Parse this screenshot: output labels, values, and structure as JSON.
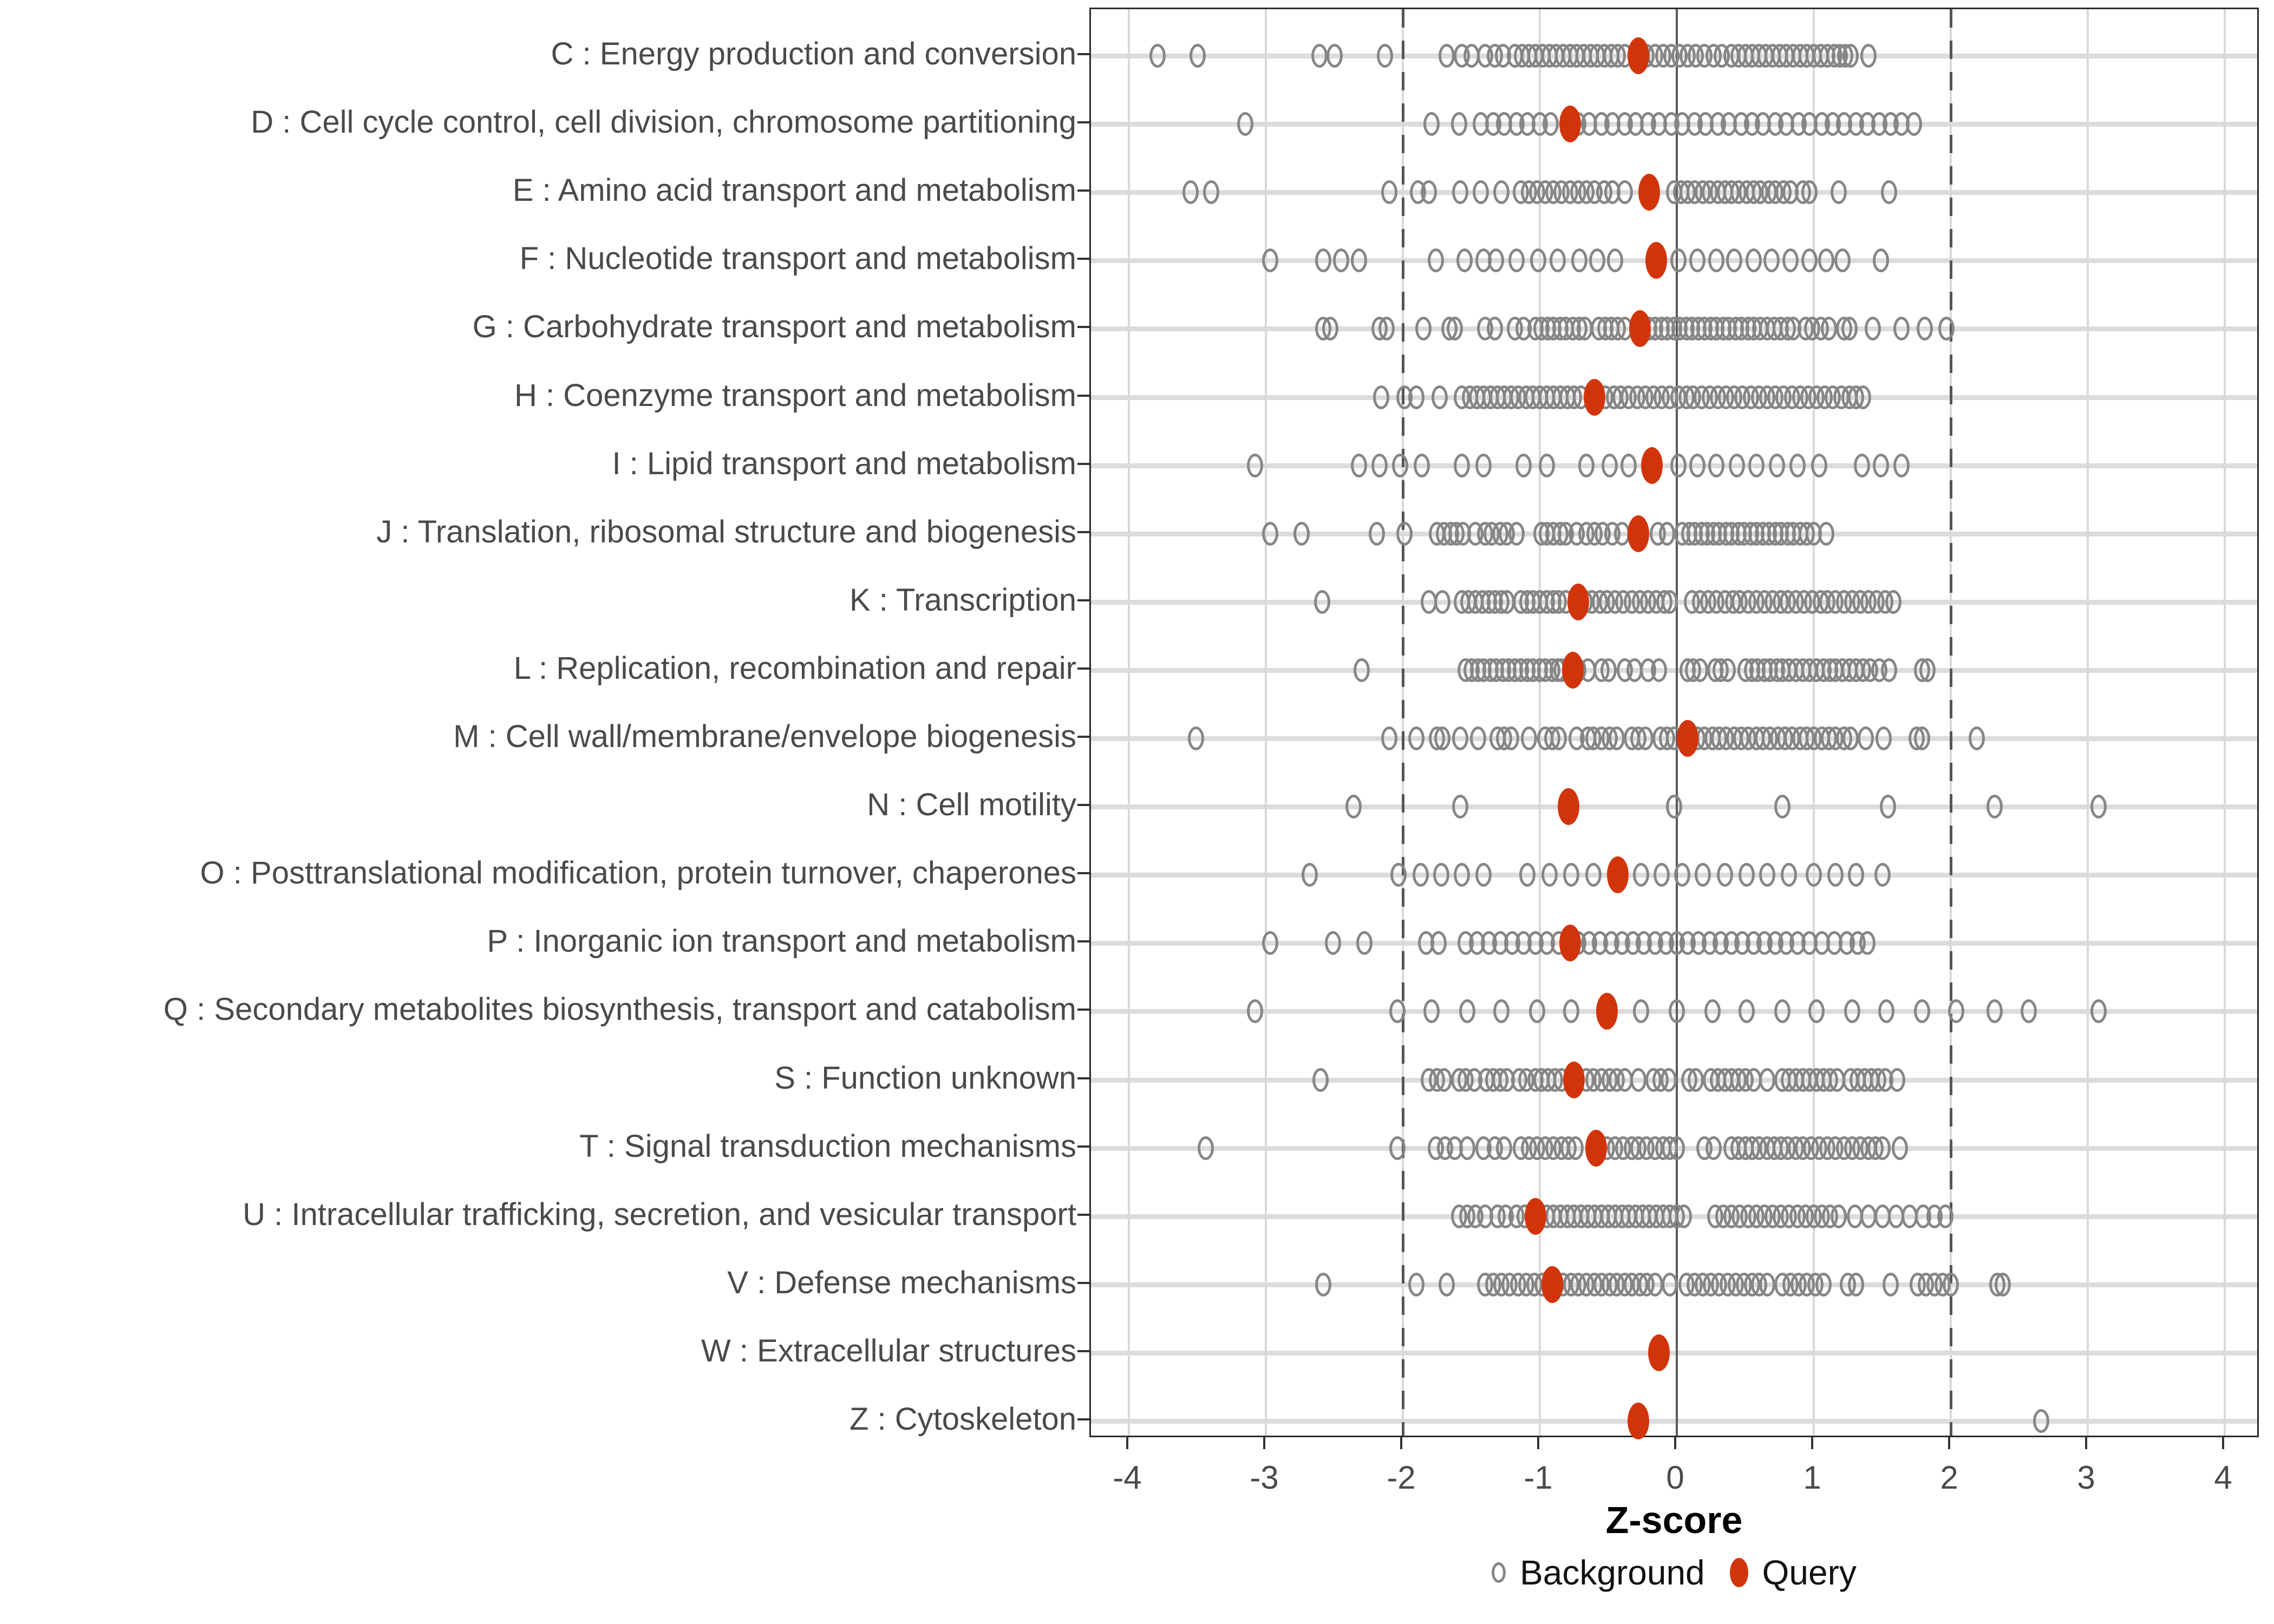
{
  "x_axis": {
    "title": "Z-score",
    "ticks": [
      "-4",
      "-3",
      "-2",
      "-1",
      "0",
      "1",
      "2",
      "3",
      "4"
    ],
    "tick_values": [
      -4,
      -3,
      -2,
      -1,
      0,
      1,
      2,
      3,
      4
    ]
  },
  "legend": {
    "background_label": "Background",
    "query_label": "Query"
  },
  "colors": {
    "query": "#d2340a",
    "background_stroke": "#868686",
    "grid": "#d9d9d9",
    "row_grid": "#dcdcdc",
    "reference_line": "#555555",
    "axis_text": "#4a4a4a",
    "panel_border": "#2b2b2b"
  },
  "chart_data": {
    "type": "scatter",
    "title": "",
    "xlabel": "Z-score",
    "ylabel": "",
    "xlim": [
      -4.28,
      4.26
    ],
    "x_ticks": [
      -4,
      -3,
      -2,
      -1,
      0,
      1,
      2,
      3,
      4
    ],
    "grid": true,
    "legend_position": "bottom",
    "reference_lines": {
      "solid": [
        0
      ],
      "dashed": [
        -2,
        2
      ]
    },
    "series_names": [
      "Background",
      "Query"
    ],
    "categories": [
      {
        "label": "C : Energy production and conversion",
        "query": -0.28,
        "background": [
          -3.79,
          -3.5,
          -2.61,
          -2.5,
          -2.13,
          -1.68,
          -1.57,
          -1.5,
          -1.4,
          -1.33,
          -1.27,
          -1.18,
          -1.13,
          -1.08,
          -1.03,
          -0.98,
          -0.93,
          -0.88,
          -0.83,
          -0.78,
          -0.73,
          -0.68,
          -0.63,
          -0.58,
          -0.53,
          -0.48,
          -0.43,
          -0.38,
          -0.22,
          -0.16,
          -0.1,
          -0.04,
          0.02,
          0.08,
          0.14,
          0.2,
          0.27,
          0.33,
          0.4,
          0.45,
          0.5,
          0.55,
          0.6,
          0.65,
          0.7,
          0.75,
          0.8,
          0.85,
          0.9,
          0.95,
          1.0,
          1.05,
          1.1,
          1.15,
          1.19,
          1.23,
          1.27,
          1.4
        ]
      },
      {
        "label": "D : Cell cycle control, cell division, chromosome partitioning",
        "query": -0.78,
        "background": [
          -3.15,
          -1.79,
          -1.59,
          -1.43,
          -1.34,
          -1.26,
          -1.17,
          -1.09,
          -1.0,
          -0.92,
          -0.72,
          -0.64,
          -0.55,
          -0.47,
          -0.38,
          -0.3,
          -0.21,
          -0.13,
          -0.04,
          0.04,
          0.13,
          0.21,
          0.3,
          0.38,
          0.47,
          0.55,
          0.63,
          0.72,
          0.8,
          0.89,
          0.97,
          1.06,
          1.14,
          1.22,
          1.31,
          1.39,
          1.48,
          1.56,
          1.64,
          1.73
        ]
      },
      {
        "label": "E : Amino acid transport and metabolism",
        "query": -0.2,
        "background": [
          -3.55,
          -3.4,
          -2.1,
          -1.89,
          -1.81,
          -1.58,
          -1.43,
          -1.28,
          -1.14,
          -1.08,
          -1.02,
          -0.96,
          -0.9,
          -0.84,
          -0.78,
          -0.72,
          -0.66,
          -0.6,
          -0.53,
          -0.47,
          -0.38,
          -0.02,
          0.03,
          0.08,
          0.13,
          0.19,
          0.24,
          0.3,
          0.35,
          0.4,
          0.45,
          0.51,
          0.56,
          0.61,
          0.67,
          0.72,
          0.78,
          0.83,
          0.92,
          0.97,
          1.18,
          1.55
        ]
      },
      {
        "label": "F : Nucleotide transport and metabolism",
        "query": -0.15,
        "background": [
          -2.97,
          -2.58,
          -2.45,
          -2.32,
          -1.76,
          -1.55,
          -1.41,
          -1.32,
          -1.17,
          -1.01,
          -0.87,
          -0.71,
          -0.58,
          -0.45,
          0.01,
          0.15,
          0.29,
          0.42,
          0.56,
          0.69,
          0.83,
          0.97,
          1.09,
          1.21,
          1.49
        ]
      },
      {
        "label": "G : Carbohydrate transport and metabolism",
        "query": -0.27,
        "background": [
          -2.58,
          -2.53,
          -2.17,
          -2.12,
          -1.85,
          -1.66,
          -1.62,
          -1.4,
          -1.33,
          -1.18,
          -1.12,
          -1.03,
          -0.99,
          -0.94,
          -0.9,
          -0.85,
          -0.81,
          -0.76,
          -0.71,
          -0.67,
          -0.57,
          -0.52,
          -0.48,
          -0.43,
          -0.38,
          -0.2,
          -0.16,
          -0.11,
          -0.07,
          -0.02,
          0.02,
          0.07,
          0.11,
          0.16,
          0.2,
          0.25,
          0.29,
          0.34,
          0.38,
          0.43,
          0.47,
          0.52,
          0.56,
          0.61,
          0.66,
          0.71,
          0.76,
          0.81,
          0.85,
          0.94,
          0.99,
          1.05,
          1.11,
          1.22,
          1.26,
          1.43,
          1.64,
          1.81,
          1.97
        ]
      },
      {
        "label": "H : Coenzyme transport and metabolism",
        "query": -0.6,
        "background": [
          -2.16,
          -1.99,
          -1.9,
          -1.73,
          -1.57,
          -1.51,
          -1.46,
          -1.41,
          -1.36,
          -1.31,
          -1.26,
          -1.21,
          -1.16,
          -1.1,
          -1.05,
          -1.0,
          -0.95,
          -0.9,
          -0.85,
          -0.8,
          -0.75,
          -0.7,
          -0.52,
          -0.46,
          -0.41,
          -0.35,
          -0.29,
          -0.23,
          -0.17,
          -0.11,
          -0.05,
          0.01,
          0.07,
          0.12,
          0.18,
          0.24,
          0.3,
          0.36,
          0.42,
          0.48,
          0.54,
          0.6,
          0.66,
          0.72,
          0.78,
          0.84,
          0.9,
          0.96,
          1.02,
          1.08,
          1.14,
          1.2,
          1.26,
          1.31,
          1.36
        ]
      },
      {
        "label": "I : Lipid transport and metabolism",
        "query": -0.18,
        "background": [
          -3.08,
          -2.32,
          -2.17,
          -2.02,
          -1.86,
          -1.57,
          -1.41,
          -1.12,
          -0.95,
          -0.66,
          -0.49,
          -0.35,
          0.01,
          0.15,
          0.29,
          0.44,
          0.58,
          0.73,
          0.88,
          1.04,
          1.35,
          1.49,
          1.64
        ]
      },
      {
        "label": "J : Translation, ribosomal structure and biogenesis",
        "query": -0.28,
        "background": [
          -2.97,
          -2.74,
          -2.19,
          -1.99,
          -1.75,
          -1.7,
          -1.65,
          -1.61,
          -1.56,
          -1.47,
          -1.4,
          -1.35,
          -1.29,
          -1.24,
          -1.17,
          -0.99,
          -0.95,
          -0.9,
          -0.85,
          -0.81,
          -0.73,
          -0.66,
          -0.6,
          -0.54,
          -0.47,
          -0.4,
          -0.14,
          -0.07,
          0.04,
          0.09,
          0.13,
          0.18,
          0.22,
          0.27,
          0.31,
          0.36,
          0.4,
          0.45,
          0.49,
          0.54,
          0.58,
          0.63,
          0.67,
          0.72,
          0.76,
          0.81,
          0.85,
          0.9,
          0.95,
          1.0,
          1.09
        ]
      },
      {
        "label": "K : Transcription",
        "query": -0.72,
        "background": [
          -2.59,
          -1.81,
          -1.71,
          -1.57,
          -1.52,
          -1.47,
          -1.42,
          -1.37,
          -1.33,
          -1.28,
          -1.24,
          -1.14,
          -1.09,
          -1.05,
          -1.0,
          -0.95,
          -0.9,
          -0.86,
          -0.81,
          -0.67,
          -0.62,
          -0.56,
          -0.51,
          -0.45,
          -0.39,
          -0.33,
          -0.27,
          -0.21,
          -0.15,
          -0.09,
          -0.05,
          0.11,
          0.17,
          0.23,
          0.29,
          0.35,
          0.41,
          0.46,
          0.52,
          0.58,
          0.64,
          0.7,
          0.76,
          0.81,
          0.87,
          0.93,
          0.99,
          1.05,
          1.1,
          1.16,
          1.22,
          1.28,
          1.34,
          1.4,
          1.46,
          1.52,
          1.58
        ]
      },
      {
        "label": "L : Replication, recombination and repair",
        "query": -0.76,
        "background": [
          -2.3,
          -1.54,
          -1.5,
          -1.45,
          -1.41,
          -1.36,
          -1.32,
          -1.27,
          -1.23,
          -1.18,
          -1.14,
          -1.09,
          -1.05,
          -1.0,
          -0.96,
          -0.91,
          -0.87,
          -0.84,
          -0.72,
          -0.65,
          -0.55,
          -0.5,
          -0.38,
          -0.31,
          -0.21,
          -0.13,
          0.08,
          0.12,
          0.17,
          0.28,
          0.32,
          0.37,
          0.5,
          0.55,
          0.59,
          0.64,
          0.68,
          0.73,
          0.77,
          0.82,
          0.87,
          0.92,
          0.97,
          1.02,
          1.07,
          1.12,
          1.16,
          1.21,
          1.26,
          1.31,
          1.36,
          1.41,
          1.48,
          1.55,
          1.79,
          1.83
        ]
      },
      {
        "label": "M : Cell wall/membrane/envelope biogenesis",
        "query": 0.08,
        "background": [
          -3.51,
          -2.1,
          -1.9,
          -1.75,
          -1.71,
          -1.58,
          -1.45,
          -1.31,
          -1.26,
          -1.21,
          -1.08,
          -0.96,
          -0.91,
          -0.86,
          -0.73,
          -0.65,
          -0.61,
          -0.55,
          -0.49,
          -0.44,
          -0.33,
          -0.28,
          -0.23,
          -0.12,
          -0.07,
          -0.02,
          0.15,
          0.2,
          0.26,
          0.31,
          0.36,
          0.42,
          0.47,
          0.52,
          0.58,
          0.63,
          0.68,
          0.74,
          0.79,
          0.84,
          0.9,
          0.95,
          1.0,
          1.06,
          1.11,
          1.16,
          1.22,
          1.27,
          1.38,
          1.51,
          1.75,
          1.79,
          2.19
        ]
      },
      {
        "label": "N : Cell motility",
        "query": -0.79,
        "background": [
          -2.36,
          -1.58,
          -0.02,
          0.77,
          1.54,
          2.32,
          3.08
        ]
      },
      {
        "label": "O : Posttranslational modification, protein turnover, chaperones",
        "query": -0.43,
        "background": [
          -2.68,
          -2.03,
          -1.87,
          -1.72,
          -1.57,
          -1.41,
          -1.09,
          -0.93,
          -0.77,
          -0.61,
          -0.26,
          -0.11,
          0.04,
          0.19,
          0.35,
          0.51,
          0.66,
          0.82,
          1.0,
          1.16,
          1.31,
          1.5
        ]
      },
      {
        "label": "P : Inorganic ion transport and metabolism",
        "query": -0.78,
        "background": [
          -2.97,
          -2.51,
          -2.28,
          -1.83,
          -1.74,
          -1.54,
          -1.46,
          -1.37,
          -1.29,
          -1.2,
          -1.12,
          -1.03,
          -0.95,
          -0.86,
          -0.72,
          -0.64,
          -0.56,
          -0.48,
          -0.4,
          -0.32,
          -0.24,
          -0.16,
          -0.08,
          0.0,
          0.08,
          0.16,
          0.24,
          0.32,
          0.4,
          0.48,
          0.56,
          0.64,
          0.72,
          0.8,
          0.88,
          0.97,
          1.06,
          1.15,
          1.24,
          1.32,
          1.39
        ]
      },
      {
        "label": "Q : Secondary metabolites biosynthesis, transport and catabolism",
        "query": -0.51,
        "background": [
          -3.08,
          -2.04,
          -1.79,
          -1.53,
          -1.28,
          -1.02,
          -0.77,
          -0.26,
          0.0,
          0.26,
          0.51,
          0.77,
          1.02,
          1.28,
          1.53,
          1.79,
          2.04,
          2.32,
          2.57,
          3.08
        ]
      },
      {
        "label": "S : Function unknown",
        "query": -0.75,
        "background": [
          -2.6,
          -1.81,
          -1.75,
          -1.7,
          -1.59,
          -1.54,
          -1.48,
          -1.39,
          -1.34,
          -1.29,
          -1.24,
          -1.15,
          -1.1,
          -1.03,
          -0.99,
          -0.94,
          -0.89,
          -0.84,
          -0.66,
          -0.61,
          -0.55,
          -0.49,
          -0.44,
          -0.38,
          -0.28,
          -0.17,
          -0.12,
          -0.06,
          0.09,
          0.14,
          0.25,
          0.3,
          0.35,
          0.4,
          0.45,
          0.5,
          0.56,
          0.66,
          0.77,
          0.82,
          0.87,
          0.92,
          0.97,
          1.02,
          1.07,
          1.12,
          1.17,
          1.27,
          1.32,
          1.37,
          1.42,
          1.47,
          1.52,
          1.61
        ]
      },
      {
        "label": "T : Signal transduction mechanisms",
        "query": -0.59,
        "background": [
          -3.44,
          -2.04,
          -1.76,
          -1.69,
          -1.62,
          -1.53,
          -1.41,
          -1.33,
          -1.26,
          -1.14,
          -1.08,
          -1.02,
          -0.96,
          -0.9,
          -0.84,
          -0.79,
          -0.74,
          -0.51,
          -0.45,
          -0.39,
          -0.33,
          -0.28,
          -0.22,
          -0.16,
          -0.1,
          -0.05,
          0.0,
          0.2,
          0.27,
          0.4,
          0.45,
          0.5,
          0.55,
          0.6,
          0.66,
          0.71,
          0.76,
          0.81,
          0.87,
          0.92,
          0.98,
          1.04,
          1.1,
          1.16,
          1.22,
          1.28,
          1.34,
          1.4,
          1.45,
          1.5,
          1.63
        ]
      },
      {
        "label": "U : Intracellular trafficking, secretion, and vesicular transport",
        "query": -1.03,
        "background": [
          -1.59,
          -1.53,
          -1.47,
          -1.4,
          -1.31,
          -1.25,
          -1.17,
          -1.11,
          -0.95,
          -0.9,
          -0.85,
          -0.8,
          -0.75,
          -0.7,
          -0.65,
          -0.6,
          -0.55,
          -0.5,
          -0.45,
          -0.4,
          -0.35,
          -0.3,
          -0.25,
          -0.2,
          -0.15,
          -0.1,
          -0.05,
          0.0,
          0.05,
          0.28,
          0.34,
          0.4,
          0.46,
          0.52,
          0.58,
          0.64,
          0.7,
          0.76,
          0.82,
          0.88,
          0.94,
          1.0,
          1.06,
          1.12,
          1.18,
          1.3,
          1.4,
          1.5,
          1.6,
          1.7,
          1.8,
          1.88,
          1.96
        ]
      },
      {
        "label": "V : Defense mechanisms",
        "query": -0.91,
        "background": [
          -2.58,
          -1.9,
          -1.68,
          -1.4,
          -1.34,
          -1.28,
          -1.22,
          -1.16,
          -1.1,
          -1.04,
          -0.98,
          -0.88,
          -0.83,
          -0.77,
          -0.72,
          -0.66,
          -0.6,
          -0.55,
          -0.49,
          -0.44,
          -0.38,
          -0.33,
          -0.27,
          -0.22,
          -0.16,
          -0.05,
          0.07,
          0.13,
          0.19,
          0.25,
          0.31,
          0.37,
          0.43,
          0.49,
          0.55,
          0.6,
          0.66,
          0.77,
          0.83,
          0.89,
          0.95,
          1.01,
          1.07,
          1.25,
          1.31,
          1.56,
          1.76,
          1.82,
          1.88,
          1.94,
          2.0,
          2.34,
          2.38
        ]
      },
      {
        "label": "W : Extracellular structures",
        "query": -0.13,
        "background": []
      },
      {
        "label": "Z : Cytoskeleton",
        "query": -0.28,
        "background": [
          2.66
        ]
      }
    ]
  }
}
